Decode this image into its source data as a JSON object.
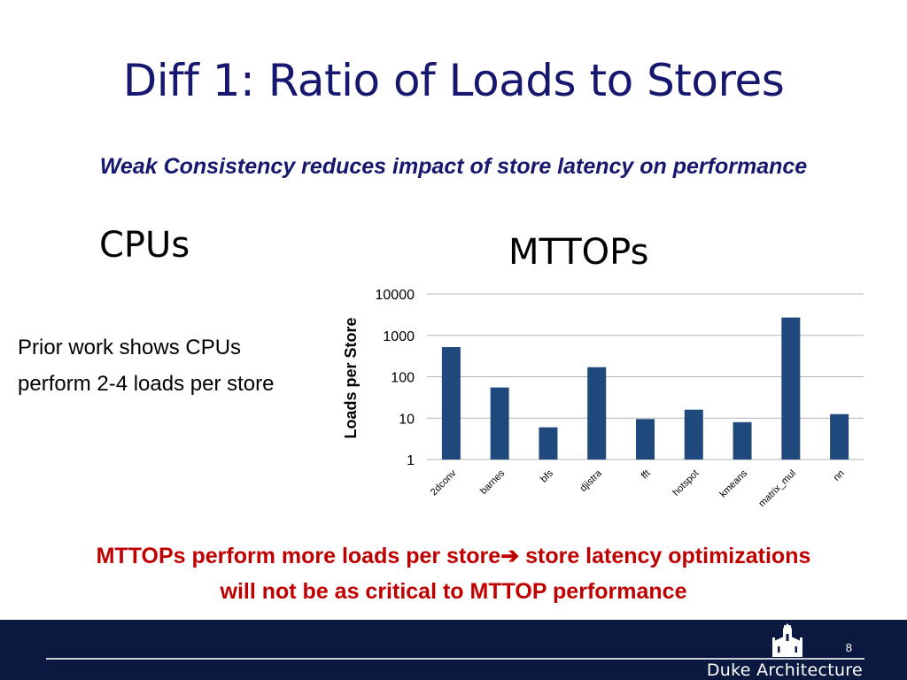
{
  "slide": {
    "title": "Diff 1: Ratio of Loads to Stores",
    "subtitle": "Weak Consistency reduces impact of store latency on performance",
    "cpus_heading": "CPUs",
    "mttops_heading": "MTTOPs",
    "prior_text": "Prior work shows CPUs perform 2-4 loads per store",
    "conclusion_line1_before": "MTTOPs perform more loads per store",
    "conclusion_arrow": "➔",
    "conclusion_line1_after": " store latency optimizations",
    "conclusion_line2": "will not be as critical to MTTOP performance",
    "page_number": "8",
    "footer_brand": "Duke Architecture"
  },
  "chart_data": {
    "type": "bar",
    "title": "",
    "xlabel": "",
    "ylabel": "Loads per Store",
    "yscale": "log",
    "ylim": [
      1,
      10000
    ],
    "yticks": [
      1,
      10,
      100,
      1000,
      10000
    ],
    "ytick_labels": [
      "1",
      "10",
      "100",
      "1000",
      "10000"
    ],
    "categories": [
      "2dconv",
      "barnes",
      "bfs",
      "djistra",
      "fft",
      "hotspot",
      "kmeans",
      "matrix_mul",
      "nn"
    ],
    "values": [
      520,
      55,
      6,
      170,
      9.5,
      16,
      8,
      2700,
      12.5
    ],
    "grid": true,
    "legend": "none",
    "bar_color": "#1f497d"
  }
}
